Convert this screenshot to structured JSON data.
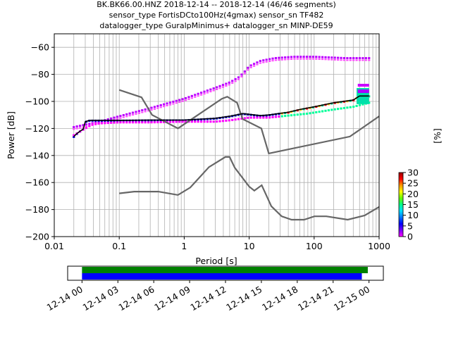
{
  "title_lines": [
    "BK.BK66.00.HNZ   2018-12-14 -- 2018-12-14  (46/46 segments)",
    "sensor_type FortisDCto100Hz(4gmax) sensor_sn TF482",
    "datalogger_type GuralpMinimus+ datalogger_sn MINP-DE59"
  ],
  "colorbar": {
    "label": "[%]",
    "ticks": [
      "0",
      "5",
      "10",
      "15",
      "20",
      "25",
      "30"
    ],
    "range": [
      0,
      30
    ],
    "colors": [
      "#ff00ff",
      "#7700ff",
      "#0000ff",
      "#0077ff",
      "#00ddff",
      "#00ff88",
      "#66ff00",
      "#ffff00",
      "#ff9900",
      "#ff0000",
      "#990000"
    ]
  },
  "timeline": {
    "ticks": [
      "12-14 00",
      "12-14 03",
      "12-14 06",
      "12-14 09",
      "12-14 12",
      "12-14 15",
      "12-14 18",
      "12-14 21",
      "12-15 00"
    ],
    "range_hours": [
      -1.2,
      25.2
    ],
    "bars": [
      {
        "color": "#008000",
        "start": 0,
        "end": 23.9
      },
      {
        "color": "#0000ff",
        "start": 0,
        "end": 23.4
      }
    ]
  },
  "chart_data": {
    "type": "line",
    "xlabel": "Period [s]",
    "ylabel": "Power [dB]",
    "xscale": "log",
    "xlim": [
      0.01,
      1000
    ],
    "ylim": [
      -200,
      -50
    ],
    "xticks": [
      {
        "v": 0.01,
        "label": "0.01"
      },
      {
        "v": 0.1,
        "label": "0.1"
      },
      {
        "v": 1,
        "label": "1"
      },
      {
        "v": 10,
        "label": "10"
      },
      {
        "v": 100,
        "label": "100"
      },
      {
        "v": 1000,
        "label": "1000"
      }
    ],
    "yticks": [
      {
        "v": -60,
        "label": "−60"
      },
      {
        "v": -80,
        "label": "−80"
      },
      {
        "v": -100,
        "label": "−100"
      },
      {
        "v": -120,
        "label": "−120"
      },
      {
        "v": -140,
        "label": "−140"
      },
      {
        "v": -160,
        "label": "−160"
      },
      {
        "v": -180,
        "label": "−180"
      },
      {
        "v": -200,
        "label": "−200"
      }
    ],
    "grid": true,
    "nhnm": [
      [
        0.1,
        -91.5
      ],
      [
        0.22,
        -97
      ],
      [
        0.32,
        -110
      ],
      [
        0.8,
        -120
      ],
      [
        3.8,
        -98
      ],
      [
        4.6,
        -96.5
      ],
      [
        6.5,
        -101
      ],
      [
        7.9,
        -113
      ],
      [
        15.4,
        -120
      ],
      [
        20,
        -138.5
      ],
      [
        354.8,
        -126
      ],
      [
        1000,
        -111
      ]
    ],
    "nlnm": [
      [
        0.1,
        -168
      ],
      [
        0.17,
        -166.7
      ],
      [
        0.4,
        -166.7
      ],
      [
        0.8,
        -169.2
      ],
      [
        1.24,
        -163.7
      ],
      [
        2.4,
        -148.6
      ],
      [
        4.3,
        -141.1
      ],
      [
        5,
        -141.1
      ],
      [
        6,
        -149
      ],
      [
        10,
        -163
      ],
      [
        12,
        -166
      ],
      [
        15.6,
        -162
      ],
      [
        21.9,
        -177.5
      ],
      [
        31.6,
        -185
      ],
      [
        45,
        -187.5
      ],
      [
        70,
        -187.5
      ],
      [
        101,
        -185
      ],
      [
        154,
        -185
      ],
      [
        328,
        -187.5
      ],
      [
        600,
        -184.4
      ],
      [
        1000,
        -178
      ]
    ],
    "mean": [
      [
        0.02,
        -126
      ],
      [
        0.022,
        -124
      ],
      [
        0.025,
        -122
      ],
      [
        0.028,
        -120.5
      ],
      [
        0.03,
        -115
      ],
      [
        0.035,
        -114
      ],
      [
        0.05,
        -114
      ],
      [
        0.1,
        -114
      ],
      [
        0.3,
        -113.8
      ],
      [
        1,
        -113.8
      ],
      [
        3,
        -112.5
      ],
      [
        5,
        -111
      ],
      [
        8,
        -109
      ],
      [
        12,
        -110
      ],
      [
        15,
        -110.5
      ],
      [
        20,
        -110
      ],
      [
        40,
        -108
      ],
      [
        60,
        -106
      ],
      [
        100,
        -104
      ],
      [
        200,
        -101
      ],
      [
        400,
        -99
      ],
      [
        500,
        -96
      ],
      [
        700,
        -96
      ]
    ],
    "mode_upper": [
      [
        0.02,
        -119
      ],
      [
        0.05,
        -115
      ],
      [
        0.1,
        -111
      ],
      [
        0.3,
        -105
      ],
      [
        1,
        -98
      ],
      [
        3,
        -90
      ],
      [
        5,
        -86
      ],
      [
        7,
        -82
      ],
      [
        8.5,
        -78
      ],
      [
        10,
        -74
      ],
      [
        15,
        -70
      ],
      [
        25,
        -68
      ],
      [
        50,
        -67
      ],
      [
        100,
        -67
      ],
      [
        300,
        -68
      ],
      [
        700,
        -68
      ]
    ],
    "mode_lower": [
      [
        0.02,
        -125
      ],
      [
        0.04,
        -116.5
      ],
      [
        0.1,
        -115.5
      ],
      [
        0.3,
        -115.5
      ],
      [
        1,
        -115
      ],
      [
        3,
        -115
      ],
      [
        5,
        -114
      ],
      [
        10,
        -112
      ],
      [
        20,
        -112
      ],
      [
        40,
        -110.5
      ],
      [
        80,
        -109
      ],
      [
        200,
        -106
      ],
      [
        400,
        -104
      ],
      [
        700,
        -101
      ]
    ],
    "lp_fan_top": [
      [
        450,
        -87
      ],
      [
        700,
        -87
      ]
    ],
    "lp_fan_bottom": [
      [
        450,
        -102
      ],
      [
        700,
        -102
      ]
    ]
  }
}
